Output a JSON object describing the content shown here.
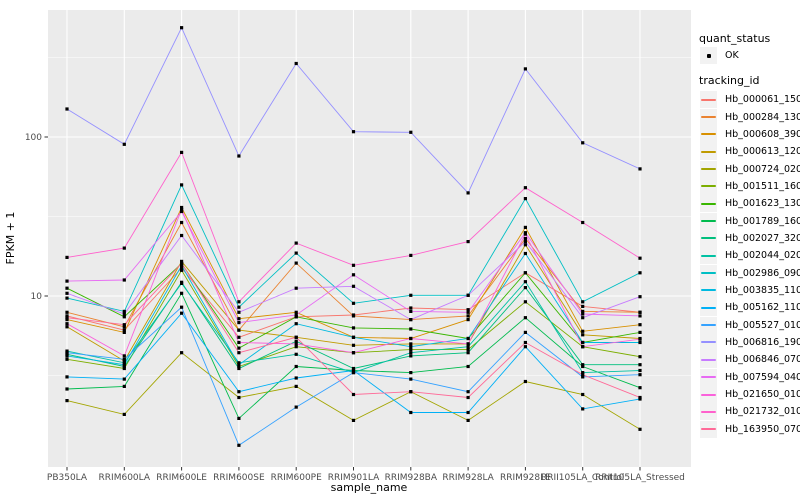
{
  "figure": {
    "background": "#FFFFFF",
    "panel_background": "#EBEBEB",
    "grid_color": "#FFFFFF",
    "point_color": "#000000",
    "tick_text_color": "#4D4D4D",
    "title_text_color": "#000000"
  },
  "legend": {
    "quant_title": "quant_status",
    "quant_items": [
      {
        "label": "OK",
        "glyph": "black-point"
      }
    ],
    "tracking_title": "tracking_id"
  },
  "chart_data": {
    "type": "line",
    "title": "",
    "xlabel": "sample_name",
    "ylabel": "FPKM + 1",
    "y_scale": "log10",
    "y_ticks": [
      100,
      10
    ],
    "y_minor_ticks": [
      316.23,
      31.623,
      3.1623
    ],
    "ylim": [
      1,
      630
    ],
    "grid": true,
    "legend_position": "right",
    "x": [
      "PB350LA",
      "RRIM600LA",
      "RRIM600LE",
      "RRIM600SE",
      "RRIM600PE",
      "RRIM901LA",
      "RRIM928BA",
      "RRIM928LA",
      "RRIM928LE",
      "RRII105LA_Control",
      "RRII105LA_Stressed"
    ],
    "series": [
      {
        "name": "Hb_000061_150",
        "color": "#F8766D",
        "values": [
          7.5,
          6.1,
          15,
          5.5,
          7.4,
          7.6,
          8.4,
          8.2,
          14,
          8.6,
          7.9
        ]
      },
      {
        "name": "Hb_000284_130",
        "color": "#EA8331",
        "values": [
          7.9,
          6.4,
          29,
          6.1,
          16.1,
          7.5,
          7.1,
          7.5,
          23,
          8.0,
          7.9
        ]
      },
      {
        "name": "Hb_000608_390",
        "color": "#D89000",
        "values": [
          7.1,
          5.9,
          36,
          7.2,
          7.9,
          5.5,
          5.4,
          7.1,
          27,
          6.0,
          6.6
        ]
      },
      {
        "name": "Hb_000613_120",
        "color": "#C09B00",
        "values": [
          6.4,
          3.9,
          16.5,
          6.1,
          5.5,
          4.9,
          5.0,
          5.0,
          21,
          5.7,
          5.4
        ]
      },
      {
        "name": "Hb_000724_020",
        "color": "#A3A500",
        "values": [
          2.2,
          1.8,
          4.4,
          2.3,
          2.7,
          1.65,
          2.5,
          1.65,
          2.9,
          2.4,
          1.45
        ]
      },
      {
        "name": "Hb_001511_160",
        "color": "#7CAE00",
        "values": [
          4.0,
          3.5,
          14.5,
          3.6,
          4.8,
          4.4,
          4.6,
          4.6,
          9.2,
          4.8,
          4.15
        ]
      },
      {
        "name": "Hb_001623_130",
        "color": "#39B600",
        "values": [
          11.2,
          7.4,
          16,
          4.7,
          7.4,
          6.3,
          6.2,
          5.4,
          14,
          5.1,
          5.9
        ]
      },
      {
        "name": "Hb_001789_160",
        "color": "#00BB4E",
        "values": [
          2.6,
          2.7,
          10.4,
          1.7,
          3.6,
          3.4,
          3.3,
          3.6,
          7.3,
          3.6,
          2.65
        ]
      },
      {
        "name": "Hb_002027_320",
        "color": "#00BF7D",
        "values": [
          4.3,
          3.6,
          12.2,
          3.5,
          5.2,
          3.5,
          4.2,
          4.4,
          11.3,
          3.7,
          3.7
        ]
      },
      {
        "name": "Hb_002044_020",
        "color": "#00C1A3",
        "values": [
          4.5,
          3.8,
          12,
          3.8,
          4.3,
          3.3,
          4.4,
          4.8,
          12.3,
          3.3,
          3.4
        ]
      },
      {
        "name": "Hb_002986_090",
        "color": "#00BFC4",
        "values": [
          9.7,
          8.0,
          50,
          8.5,
          18.6,
          9.0,
          10.1,
          10.1,
          41,
          9.2,
          14
        ]
      },
      {
        "name": "Hb_003835_110",
        "color": "#00BAE0",
        "values": [
          4.2,
          3.7,
          15.5,
          3.7,
          6.7,
          5.5,
          4.8,
          5.4,
          18.5,
          5.1,
          5.1
        ]
      },
      {
        "name": "Hb_005162_110",
        "color": "#00B0F6",
        "values": [
          3.1,
          3.0,
          7.8,
          2.5,
          3.05,
          3.4,
          1.85,
          1.85,
          4.8,
          1.95,
          2.25
        ]
      },
      {
        "name": "Hb_005527_010",
        "color": "#35A2FF",
        "values": [
          4.4,
          4.0,
          8.5,
          1.15,
          2.0,
          3.3,
          3.0,
          2.5,
          5.9,
          3.1,
          3.2
        ]
      },
      {
        "name": "Hb_006816_190",
        "color": "#9590FF",
        "values": [
          150,
          90,
          487,
          76,
          290,
          108,
          107,
          44.5,
          268,
          92,
          63
        ]
      },
      {
        "name": "Hb_006846_070",
        "color": "#C77CFF",
        "values": [
          10.4,
          7.7,
          24,
          7.9,
          11.2,
          11.5,
          7.1,
          10.1,
          22,
          7.3,
          9.9
        ]
      },
      {
        "name": "Hb_007594_040",
        "color": "#E76BF3",
        "values": [
          12.4,
          12.6,
          34,
          6.8,
          7.6,
          13.6,
          8.0,
          7.9,
          25,
          7.7,
          7.5
        ]
      },
      {
        "name": "Hb_021650_010",
        "color": "#FA62DB",
        "values": [
          6.7,
          4.2,
          35,
          5.1,
          5.0,
          4.4,
          5.4,
          5.0,
          24.5,
          4.8,
          5.35
        ]
      },
      {
        "name": "Hb_021732_010",
        "color": "#FF61CC",
        "values": [
          17.5,
          20,
          80,
          9.2,
          21.5,
          15.6,
          18,
          22,
          48,
          29,
          17.3
        ]
      },
      {
        "name": "Hb_163950_070",
        "color": "#FF6A98",
        "values": [
          7.3,
          6.6,
          16,
          4.4,
          5.5,
          2.4,
          2.5,
          2.3,
          5.1,
          3.2,
          2.3
        ]
      }
    ]
  }
}
